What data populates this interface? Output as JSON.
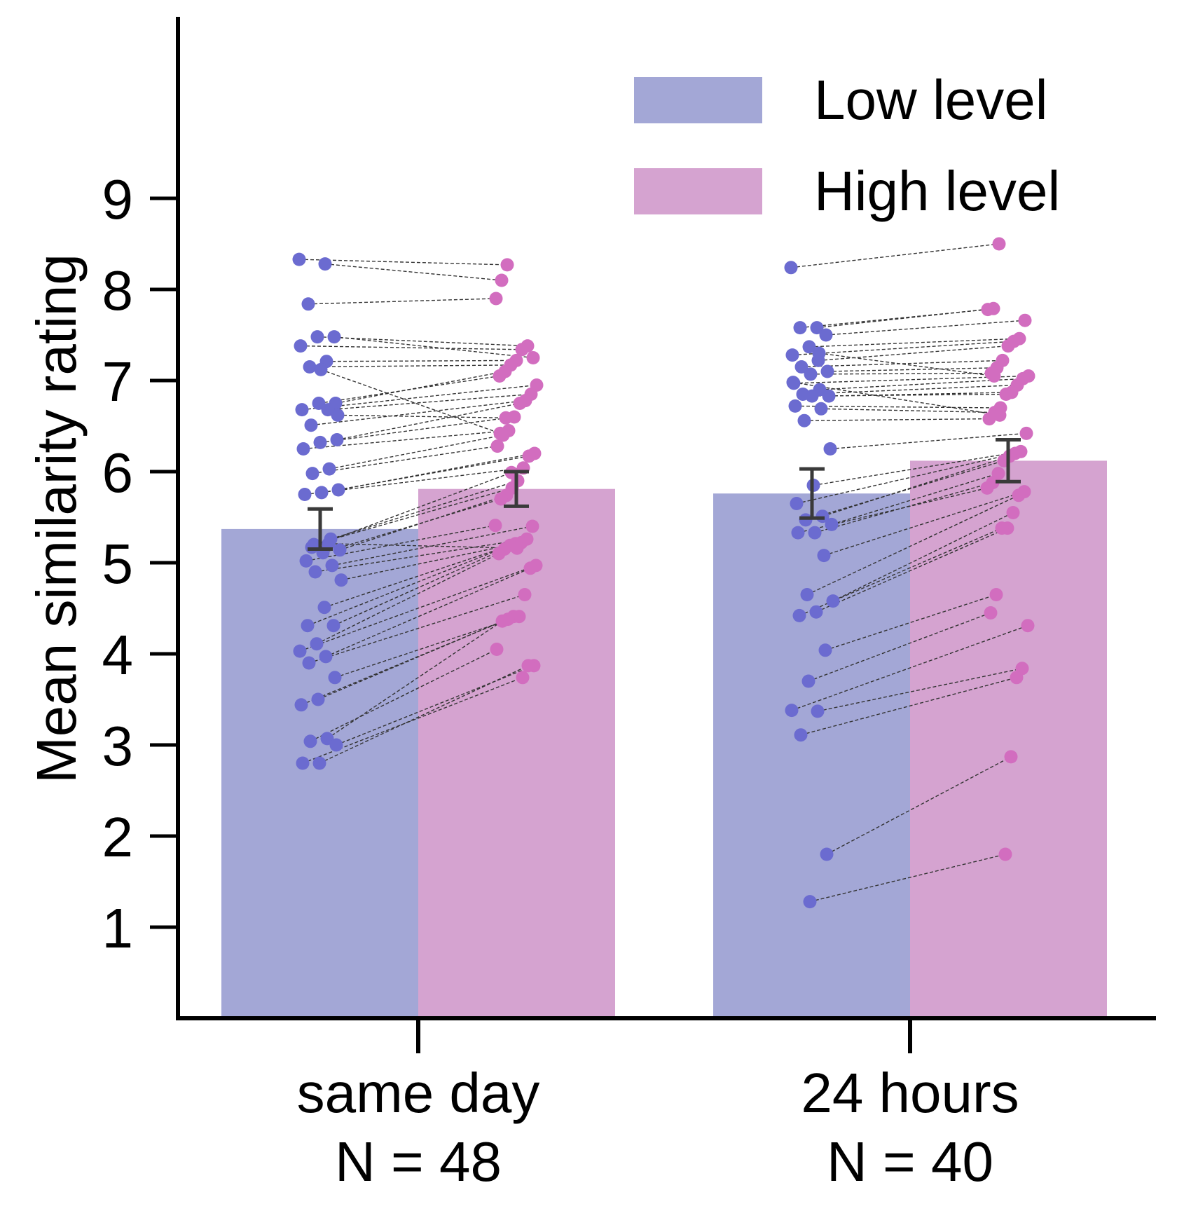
{
  "chart_data": {
    "type": "bar",
    "categories": [
      "same day",
      "24 hours"
    ],
    "category_sublabels": [
      "N = 48",
      "N = 40"
    ],
    "ylabel": "Mean similarity rating",
    "ylim": [
      0,
      11
    ],
    "yticks": [
      1,
      2,
      3,
      4,
      5,
      6,
      7,
      8,
      9
    ],
    "legend_position": "top-right",
    "grid": false,
    "series": [
      {
        "name": "Low level",
        "color": "#a3a7d6",
        "point_color": "#6b6bd0",
        "values": [
          5.37,
          5.76
        ],
        "error": [
          0.22,
          0.27
        ]
      },
      {
        "name": "High level",
        "color": "#d5a3d0",
        "point_color": "#d26dbf",
        "values": [
          5.81,
          6.12
        ],
        "error": [
          0.19,
          0.23
        ]
      }
    ],
    "participants": [
      {
        "group": "same day",
        "pairs": [
          [
            8.33,
            8.27
          ],
          [
            8.28,
            8.1
          ],
          [
            7.84,
            7.9
          ],
          [
            7.48,
            7.25
          ],
          [
            7.48,
            7.38
          ],
          [
            7.38,
            7.34
          ],
          [
            7.21,
            7.22
          ],
          [
            7.15,
            7.17
          ],
          [
            6.75,
            7.1
          ],
          [
            6.75,
            7.05
          ],
          [
            6.68,
            6.95
          ],
          [
            6.68,
            6.85
          ],
          [
            6.51,
            6.78
          ],
          [
            6.35,
            6.75
          ],
          [
            6.32,
            6.6
          ],
          [
            6.25,
            6.45
          ],
          [
            6.03,
            6.4
          ],
          [
            5.98,
            6.28
          ],
          [
            5.8,
            6.2
          ],
          [
            5.77,
            6.17
          ],
          [
            5.75,
            6.04
          ],
          [
            5.26,
            5.9
          ],
          [
            5.2,
            5.82
          ],
          [
            5.14,
            5.74
          ],
          [
            5.11,
            5.7
          ],
          [
            5.02,
            5.41
          ],
          [
            4.97,
            5.4
          ],
          [
            4.9,
            5.26
          ],
          [
            4.81,
            5.22
          ],
          [
            4.51,
            5.21
          ],
          [
            4.31,
            5.19
          ],
          [
            4.31,
            5.15
          ],
          [
            4.11,
            5.1
          ],
          [
            4.03,
            4.97
          ],
          [
            3.97,
            4.94
          ],
          [
            3.9,
            4.65
          ],
          [
            3.74,
            4.41
          ],
          [
            3.5,
            4.41
          ],
          [
            3.44,
            4.38
          ],
          [
            3.07,
            4.36
          ],
          [
            3.04,
            4.05
          ],
          [
            3.0,
            3.87
          ],
          [
            2.8,
            3.87
          ],
          [
            2.8,
            3.74
          ],
          [
            5.21,
            5.16
          ],
          [
            5.17,
            5.99
          ],
          [
            6.62,
            6.59
          ],
          [
            7.12,
            6.42
          ]
        ]
      },
      {
        "group": "24 hours",
        "pairs": [
          [
            8.24,
            8.5
          ],
          [
            7.58,
            7.79
          ],
          [
            7.58,
            7.78
          ],
          [
            7.5,
            7.66
          ],
          [
            7.37,
            7.46
          ],
          [
            7.28,
            7.43
          ],
          [
            7.22,
            7.38
          ],
          [
            7.15,
            7.22
          ],
          [
            7.1,
            7.14
          ],
          [
            7.07,
            7.08
          ],
          [
            6.97,
            7.05
          ],
          [
            6.9,
            7.02
          ],
          [
            6.85,
            6.95
          ],
          [
            6.83,
            6.87
          ],
          [
            6.83,
            6.85
          ],
          [
            6.72,
            6.7
          ],
          [
            6.69,
            6.65
          ],
          [
            6.56,
            6.58
          ],
          [
            6.25,
            6.42
          ],
          [
            5.85,
            6.22
          ],
          [
            5.65,
            6.2
          ],
          [
            5.51,
            6.17
          ],
          [
            5.47,
            6.12
          ],
          [
            5.42,
            5.98
          ],
          [
            5.33,
            5.88
          ],
          [
            5.33,
            5.82
          ],
          [
            5.08,
            5.78
          ],
          [
            4.65,
            5.74
          ],
          [
            4.58,
            5.55
          ],
          [
            4.46,
            5.38
          ],
          [
            4.42,
            5.38
          ],
          [
            4.04,
            4.65
          ],
          [
            3.7,
            4.45
          ],
          [
            3.38,
            4.31
          ],
          [
            3.37,
            3.84
          ],
          [
            3.11,
            3.74
          ],
          [
            1.8,
            2.87
          ],
          [
            1.28,
            1.8
          ],
          [
            6.98,
            6.62
          ],
          [
            7.3,
            7.05
          ]
        ]
      }
    ]
  }
}
